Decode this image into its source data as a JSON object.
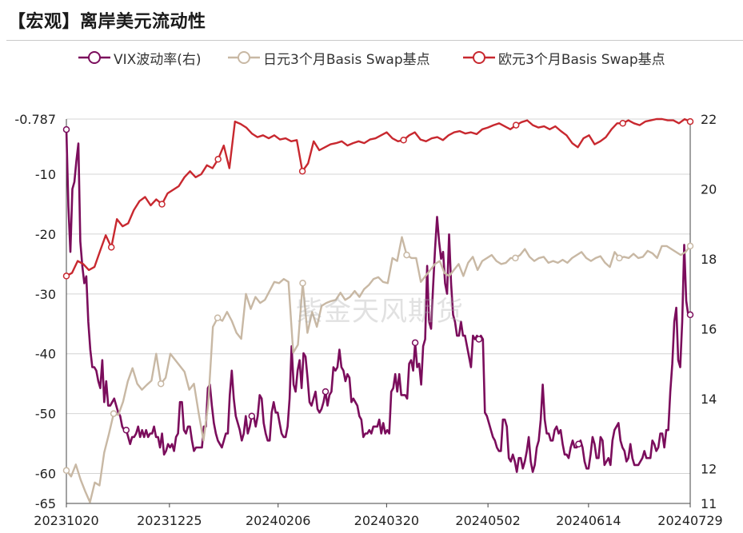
{
  "title": "【宏观】离岸美元流动性",
  "watermark": "紫金天风期货",
  "colors": {
    "vix": "#7b0d5c",
    "jpy": "#c8b8a4",
    "eur": "#c8282f",
    "grid": "#d4d4d4",
    "axis": "#444444"
  },
  "chart_data": {
    "type": "line",
    "xlabel": "",
    "ylabel_left": "",
    "ylabel_right": "",
    "y_left": {
      "range": [
        -65,
        -0.787
      ],
      "ticks": [
        -0.787,
        -10,
        -20,
        -30,
        -40,
        -50,
        -60,
        -65
      ],
      "tick_labels": [
        "-0.787",
        "-10",
        "-20",
        "-30",
        "-40",
        "-50",
        "-60",
        "-65"
      ]
    },
    "y_right": {
      "range": [
        11,
        22
      ],
      "ticks": [
        22,
        20,
        18,
        16,
        14,
        12,
        11
      ],
      "tick_labels": [
        "22",
        "20",
        "18",
        "16",
        "14",
        "12",
        "11"
      ]
    },
    "x_tick_labels": [
      "20231020",
      "20231225",
      "20240206",
      "20240320",
      "20240502",
      "20240614",
      "20240729"
    ],
    "x_tick_positions": [
      0,
      0.1652,
      0.3394,
      0.5133,
      0.6758,
      0.837,
      1.0
    ],
    "series": [
      {
        "name": "VIX波动率(右)",
        "axis": "right",
        "color": "#7b0d5c",
        "markers": [
          0,
          37,
          116,
          162,
          219,
          258,
          321,
          391
        ],
        "values": [
          21.7,
          19.5,
          18.2,
          20.0,
          20.2,
          20.8,
          21.3,
          18.5,
          17.8,
          17.3,
          17.5,
          16.2,
          15.4,
          14.9,
          14.9,
          14.8,
          14.5,
          14.3,
          15.1,
          13.9,
          14.5,
          13.8,
          13.8,
          13.9,
          14.0,
          13.8,
          13.6,
          13.5,
          13.2,
          13.1,
          13.1,
          12.9,
          12.7,
          12.9,
          12.9,
          13.0,
          13.2,
          12.9,
          13.1,
          12.9,
          13.1,
          12.9,
          13.0,
          13.0,
          13.2,
          12.9,
          12.9,
          12.6,
          13.0,
          12.4,
          12.5,
          12.7,
          12.6,
          12.7,
          12.5,
          12.9,
          13.0,
          13.9,
          13.9,
          13.1,
          13.0,
          13.2,
          13.2,
          12.8,
          12.5,
          12.6,
          12.6,
          12.6,
          12.6,
          13.2,
          13.2,
          14.3,
          14.4,
          13.8,
          13.3,
          13.0,
          12.8,
          12.7,
          12.6,
          12.8,
          13.0,
          13.0,
          14.1,
          14.8,
          14.0,
          13.5,
          13.3,
          13.1,
          12.8,
          13.0,
          13.5,
          13.0,
          13.2,
          13.5,
          13.5,
          13.2,
          13.5,
          14.1,
          14.0,
          13.3,
          13.0,
          12.8,
          12.8,
          13.6,
          13.9,
          13.6,
          13.6,
          13.3,
          13.0,
          12.9,
          12.9,
          13.2,
          14.0,
          15.5,
          14.4,
          14.2,
          14.8,
          15.1,
          14.3,
          15.3,
          15.2,
          14.6,
          13.9,
          13.8,
          14.0,
          14.2,
          13.7,
          13.6,
          13.7,
          13.9,
          14.2,
          13.8,
          14.1,
          14.2,
          14.9,
          14.8,
          14.9,
          15.4,
          14.9,
          14.8,
          14.5,
          14.7,
          14.6,
          13.9,
          14.0,
          13.9,
          13.8,
          13.5,
          13.4,
          12.9,
          13.0,
          13.0,
          13.1,
          13.0,
          13.2,
          13.2,
          13.2,
          13.4,
          13.0,
          13.3,
          13.0,
          13.1,
          13.0,
          14.2,
          14.3,
          14.7,
          14.2,
          14.7,
          14.1,
          14.1,
          14.1,
          14.0,
          15.0,
          15.1,
          14.8,
          15.6,
          14.9,
          15.0,
          14.4,
          15.5,
          15.7,
          17.8,
          16.2,
          16.0,
          17.2,
          18.3,
          19.2,
          18.5,
          18.0,
          18.2,
          17.3,
          17.0,
          18.7,
          17.3,
          16.4,
          16.2,
          15.8,
          15.8,
          16.2,
          15.8,
          15.8,
          15.5,
          15.2,
          14.9,
          15.8,
          15.7,
          15.8,
          15.7,
          15.8,
          15.7,
          13.6,
          13.5,
          13.3,
          13.1,
          12.9,
          12.8,
          12.6,
          12.5,
          12.5,
          13.4,
          13.4,
          13.2,
          12.3,
          12.2,
          12.4,
          12.2,
          11.9,
          12.3,
          12.3,
          12.0,
          12.2,
          12.5,
          12.9,
          12.2,
          11.9,
          12.1,
          12.6,
          12.8,
          13.4,
          14.4,
          13.4,
          13.0,
          13.0,
          12.8,
          12.8,
          13.1,
          13.2,
          13.0,
          13.1,
          12.7,
          12.4,
          12.4,
          12.3,
          12.6,
          12.8,
          12.6,
          12.6,
          12.7,
          12.8,
          12.6,
          12.2,
          12.0,
          12.0,
          12.4,
          12.9,
          12.7,
          12.3,
          12.3,
          12.9,
          12.8,
          12.1,
          12.2,
          12.3,
          12.1,
          12.8,
          13.1,
          13.2,
          13.3,
          12.8,
          12.6,
          12.5,
          12.2,
          12.3,
          12.7,
          12.3,
          12.1,
          12.1,
          12.1,
          12.2,
          12.3,
          12.5,
          12.3,
          12.3,
          12.3,
          12.8,
          12.7,
          12.5,
          12.6,
          13.0,
          13.0,
          12.6,
          13.1,
          13.1,
          14.2,
          15.0,
          16.2,
          16.6,
          15.1,
          14.9,
          16.2,
          18.4,
          16.8,
          16.4,
          16.4
        ]
      },
      {
        "name": "日元3个月Basis Swap基点",
        "axis": "left",
        "color": "#c8b8a4",
        "markers": [
          0,
          37,
          73,
          118,
          183,
          264,
          350,
          432,
          486
        ],
        "values": [
          -59.5,
          -60.5,
          -58.5,
          -61,
          -63,
          -64.8,
          -61.5,
          -62,
          -56.5,
          -53.4,
          -50.0,
          -50.2,
          -48.0,
          -44.6,
          -42.4,
          -45.0,
          -46.0,
          -45.2,
          -44.5,
          -40.0,
          -45.0,
          -44.0,
          -40.0,
          -41.0,
          -42.0,
          -43.0,
          -46.0,
          -45.0,
          -50.0,
          -54.5,
          -48.5,
          -35.5,
          -34.0,
          -34.5,
          -33.0,
          -34.5,
          -36.5,
          -37.5,
          -30.0,
          -32.5,
          -30.5,
          -31.5,
          -31.0,
          -29.5,
          -28.0,
          -28.2,
          -27.5,
          -28.0,
          -39.8,
          -38.5,
          -28.2,
          -36.5,
          -33.0,
          -35.5,
          -32.0,
          -31.5,
          -31.2,
          -31.0,
          -29.8,
          -31.0,
          -30.5,
          -29.5,
          -30.5,
          -29.2,
          -28.5,
          -27.5,
          -27.2,
          -28.0,
          -28.2,
          -24.0,
          -24.5,
          -20.5,
          -23.5,
          -24.0,
          -24.0,
          -28.0,
          -27.0,
          -26.0,
          -25.0,
          -24.5,
          -26.5,
          -27.0,
          -26.0,
          -25.0,
          -27.0,
          -24.8,
          -23.8,
          -26.0,
          -24.5,
          -24.0,
          -23.5,
          -24.5,
          -25.0,
          -24.8,
          -24.0,
          -24.0,
          -23.5,
          -22.5,
          -23.8,
          -24.5,
          -24.0,
          -23.8,
          -24.8,
          -24.5,
          -24.8,
          -24.3,
          -24.8,
          -24.0,
          -23.5,
          -23.0,
          -24.0,
          -24.5,
          -24.0,
          -23.7,
          -24.8,
          -25.5,
          -23.0,
          -24.0,
          -23.8,
          -24.0,
          -23.3,
          -24.0,
          -23.8,
          -22.8,
          -23.2,
          -24.0,
          -22.0,
          -22.0,
          -22.5,
          -23.0,
          -23.5,
          -23.0,
          -22.0
        ]
      },
      {
        "name": "欧元3个月Basis Swap基点",
        "axis": "left",
        "color": "#c8282f",
        "markers": [
          0,
          37,
          73,
          118,
          183,
          264,
          350,
          432,
          486
        ],
        "values": [
          -27,
          -26.5,
          -24.5,
          -25.0,
          -26.0,
          -25.5,
          -22.8,
          -20.2,
          -22.2,
          -17.5,
          -18.7,
          -18.2,
          -16.0,
          -14.5,
          -13.8,
          -15.2,
          -14.2,
          -15.0,
          -13.2,
          -12.6,
          -12.0,
          -10.5,
          -9.5,
          -10.5,
          -10.0,
          -8.5,
          -9.0,
          -7.5,
          -5.2,
          -9.0,
          -1.2,
          -1.6,
          -2.2,
          -3.2,
          -3.8,
          -3.5,
          -4.0,
          -3.5,
          -4.2,
          -4.0,
          -4.5,
          -4.3,
          -9.5,
          -8.2,
          -4.5,
          -6.0,
          -5.5,
          -5.0,
          -4.8,
          -4.5,
          -5.2,
          -4.8,
          -4.5,
          -4.8,
          -4.2,
          -4.0,
          -3.5,
          -3.0,
          -4.0,
          -4.5,
          -4.3,
          -3.5,
          -3.0,
          -4.2,
          -4.5,
          -4.0,
          -3.8,
          -4.3,
          -3.5,
          -3.0,
          -2.8,
          -3.2,
          -3.0,
          -3.3,
          -2.5,
          -2.2,
          -1.8,
          -1.5,
          -2.0,
          -2.5,
          -1.8,
          -1.3,
          -1.0,
          -1.8,
          -2.2,
          -2.0,
          -2.5,
          -2.0,
          -2.8,
          -3.5,
          -4.8,
          -5.5,
          -4.0,
          -3.5,
          -5.0,
          -4.5,
          -3.8,
          -2.5,
          -1.5,
          -1.5,
          -1.0,
          -1.5,
          -1.8,
          -1.2,
          -1.0,
          -0.787,
          -0.787,
          -1.0,
          -1.0,
          -1.5,
          -0.8,
          -1.2
        ]
      }
    ]
  }
}
